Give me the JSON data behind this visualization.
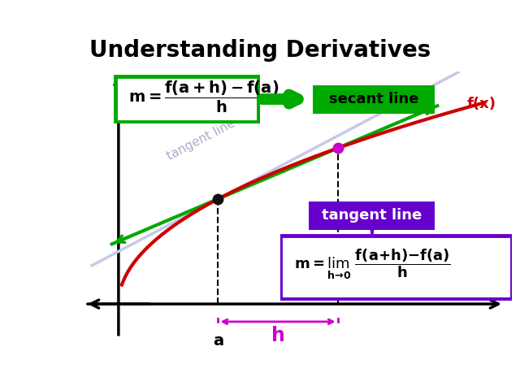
{
  "title": "Understanding Derivatives",
  "title_fontsize": 20,
  "title_fontweight": "bold",
  "bg_color": "#ffffff",
  "black_bar_color": "#111111",
  "curve_color": "#cc0000",
  "secant_color": "#00aa00",
  "tangent_color": "#c8c8e8",
  "h_brace_color": "#cc00cc",
  "point_a_color": "#111111",
  "point_ah_color": "#cc00cc",
  "fx_label_color": "#cc0000",
  "fx_label": "f(x)",
  "tangent_label": "tangent line",
  "tangent_label_color": "#aaaacc",
  "a_label": "a",
  "h_label": "h",
  "secant_edge_color": "#00aa00",
  "secant_fill_color": "#00aa00",
  "secant_text_color": "#000000",
  "tangent_edge_color": "#6600cc",
  "tangent_fill_color": "#6600cc",
  "tangent_text_color": "#ffffff",
  "formula_edge_color": "#6600cc",
  "green_formula_edge": "#00aa00"
}
